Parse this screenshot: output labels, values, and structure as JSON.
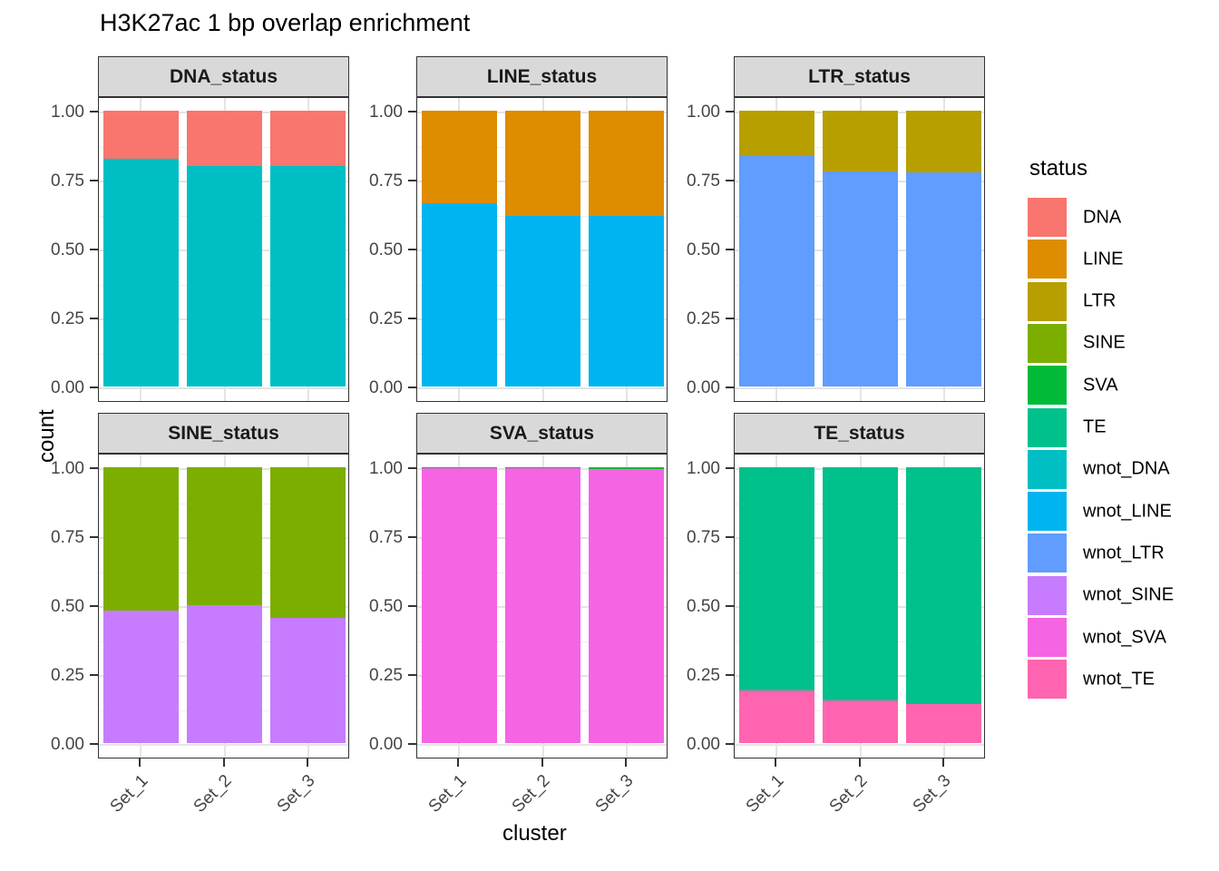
{
  "chart_data": {
    "type": "bar",
    "stacked": true,
    "title": "H3K27ac 1 bp overlap enrichment",
    "xlabel": "cluster",
    "ylabel": "count",
    "categories": [
      "Set_1",
      "Set_2",
      "Set_3"
    ],
    "ylim": [
      0,
      1
    ],
    "ytick_values": [
      0,
      0.25,
      0.5,
      0.75,
      1
    ],
    "ytick_labels": [
      "0.00",
      "0.25",
      "0.50",
      "0.75",
      "1.00"
    ],
    "grid": "on",
    "facets": [
      {
        "label": "DNA_status",
        "series": [
          {
            "name": "wnot_DNA",
            "values": [
              0.825,
              0.8,
              0.8
            ]
          },
          {
            "name": "DNA",
            "values": [
              0.175,
              0.2,
              0.2
            ]
          }
        ]
      },
      {
        "label": "LINE_status",
        "series": [
          {
            "name": "wnot_LINE",
            "values": [
              0.665,
              0.62,
              0.62
            ]
          },
          {
            "name": "LINE",
            "values": [
              0.335,
              0.38,
              0.38
            ]
          }
        ]
      },
      {
        "label": "LTR_status",
        "series": [
          {
            "name": "wnot_LTR",
            "values": [
              0.835,
              0.78,
              0.775
            ]
          },
          {
            "name": "LTR",
            "values": [
              0.165,
              0.22,
              0.225
            ]
          }
        ]
      },
      {
        "label": "SINE_status",
        "series": [
          {
            "name": "wnot_SINE",
            "values": [
              0.48,
              0.5,
              0.455
            ]
          },
          {
            "name": "SINE",
            "values": [
              0.52,
              0.5,
              0.545
            ]
          }
        ]
      },
      {
        "label": "SVA_status",
        "series": [
          {
            "name": "wnot_SVA",
            "values": [
              0.9975,
              0.9975,
              0.993
            ]
          },
          {
            "name": "SVA",
            "values": [
              0.0025,
              0.0025,
              0.007
            ]
          }
        ]
      },
      {
        "label": "TE_status",
        "series": [
          {
            "name": "wnot_TE",
            "values": [
              0.19,
              0.155,
              0.14
            ]
          },
          {
            "name": "TE",
            "values": [
              0.81,
              0.845,
              0.86
            ]
          }
        ]
      }
    ],
    "legend": {
      "position": "right",
      "title": "status",
      "entries": [
        {
          "label": "DNA",
          "color": "#F8766D"
        },
        {
          "label": "LINE",
          "color": "#DE8C00"
        },
        {
          "label": "LTR",
          "color": "#B79F00"
        },
        {
          "label": "SINE",
          "color": "#7CAE00"
        },
        {
          "label": "SVA",
          "color": "#00BA38"
        },
        {
          "label": "TE",
          "color": "#00C08B"
        },
        {
          "label": "wnot_DNA",
          "color": "#00BFC4"
        },
        {
          "label": "wnot_LINE",
          "color": "#00B4F0"
        },
        {
          "label": "wnot_LTR",
          "color": "#619CFF"
        },
        {
          "label": "wnot_SINE",
          "color": "#C77CFF"
        },
        {
          "label": "wnot_SVA",
          "color": "#F564E3"
        },
        {
          "label": "wnot_TE",
          "color": "#FF64B0"
        }
      ]
    }
  }
}
